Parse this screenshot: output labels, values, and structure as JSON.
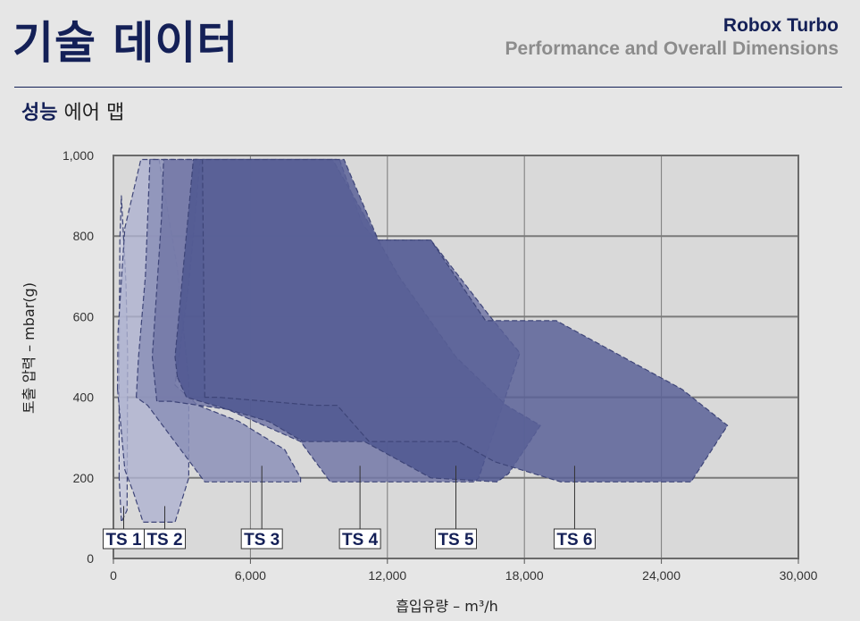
{
  "header": {
    "title": "기술 데이터",
    "brand_line1": "Robox Turbo",
    "brand_line2": "Performance and Overall Dimensions"
  },
  "section": {
    "title_bold": "성능",
    "title_rest": " 에어 맵"
  },
  "colors": {
    "navy": "#142057",
    "grid": "#7a7a7a"
  },
  "chart_data": {
    "type": "area",
    "xlabel": "흡입유량 – m³/h",
    "ylabel": "토출 압력 – mbar(g)",
    "xlim": [
      0,
      30000
    ],
    "ylim": [
      0,
      1000
    ],
    "x_ticks": [
      0,
      6000,
      12000,
      18000,
      24000,
      30000
    ],
    "x_tick_labels": [
      "0",
      "6,000",
      "12,000",
      "18,000",
      "24,000",
      "30,000"
    ],
    "y_ticks": [
      0,
      200,
      400,
      600,
      800,
      1000
    ],
    "y_tick_labels": [
      "0",
      "200",
      "400",
      "600",
      "800",
      "1,000"
    ],
    "grid": true,
    "series": [
      {
        "name": "TS 1",
        "color": "#c3c6dc",
        "opacity": 0.75,
        "label_x": 450,
        "points": [
          [
            250,
            200
          ],
          [
            250,
            480
          ],
          [
            280,
            790
          ],
          [
            350,
            900
          ],
          [
            550,
            680
          ],
          [
            620,
            500
          ],
          [
            600,
            120
          ],
          [
            350,
            90
          ]
        ]
      },
      {
        "name": "TS 2",
        "color": "#aeb2d0",
        "opacity": 0.8,
        "label_x": 2250,
        "points": [
          [
            180,
            420
          ],
          [
            200,
            560
          ],
          [
            500,
            820
          ],
          [
            1200,
            990
          ],
          [
            2000,
            990
          ],
          [
            2800,
            720
          ],
          [
            3300,
            440
          ],
          [
            3300,
            200
          ],
          [
            2700,
            90
          ],
          [
            1300,
            90
          ],
          [
            900,
            160
          ],
          [
            500,
            220
          ]
        ]
      },
      {
        "name": "TS 3",
        "color": "#8c91b9",
        "opacity": 0.85,
        "label_x": 6500,
        "points": [
          [
            1000,
            400
          ],
          [
            1100,
            500
          ],
          [
            1400,
            700
          ],
          [
            1600,
            990
          ],
          [
            3800,
            990
          ],
          [
            3300,
            680
          ],
          [
            2700,
            430
          ],
          [
            3700,
            380
          ],
          [
            5500,
            340
          ],
          [
            7500,
            270
          ],
          [
            8200,
            200
          ],
          [
            8200,
            190
          ],
          [
            4000,
            190
          ],
          [
            1500,
            380
          ]
        ]
      },
      {
        "name": "TS 4",
        "color": "#7378a7",
        "opacity": 0.85,
        "label_x": 10800,
        "points": [
          [
            1900,
            390
          ],
          [
            1700,
            500
          ],
          [
            2100,
            840
          ],
          [
            2200,
            990
          ],
          [
            9900,
            990
          ],
          [
            10900,
            830
          ],
          [
            11500,
            790
          ],
          [
            13900,
            790
          ],
          [
            16500,
            600
          ],
          [
            17800,
            510
          ],
          [
            16000,
            200
          ],
          [
            15800,
            190
          ],
          [
            9500,
            190
          ],
          [
            8200,
            290
          ],
          [
            6600,
            330
          ],
          [
            5000,
            370
          ],
          [
            2500,
            390
          ]
        ]
      },
      {
        "name": "TS 5",
        "color": "#4f5790",
        "opacity": 0.85,
        "label_x": 15000,
        "points": [
          [
            2800,
            450
          ],
          [
            2700,
            500
          ],
          [
            3500,
            990
          ],
          [
            9600,
            990
          ],
          [
            12500,
            700
          ],
          [
            15000,
            500
          ],
          [
            17200,
            380
          ],
          [
            18700,
            330
          ],
          [
            17300,
            210
          ],
          [
            16800,
            190
          ],
          [
            13900,
            200
          ],
          [
            11000,
            290
          ],
          [
            9500,
            290
          ],
          [
            8300,
            290
          ],
          [
            6800,
            340
          ],
          [
            5000,
            370
          ],
          [
            3200,
            400
          ]
        ]
      },
      {
        "name": "TS 6",
        "color": "#5b6298",
        "opacity": 0.85,
        "label_x": 20200,
        "points": [
          [
            4000,
            400
          ],
          [
            3900,
            990
          ],
          [
            10100,
            990
          ],
          [
            11600,
            790
          ],
          [
            13900,
            790
          ],
          [
            16300,
            590
          ],
          [
            19400,
            590
          ],
          [
            24900,
            420
          ],
          [
            26900,
            330
          ],
          [
            25300,
            190
          ],
          [
            19600,
            190
          ],
          [
            16700,
            240
          ],
          [
            15100,
            290
          ],
          [
            11200,
            290
          ],
          [
            9800,
            380
          ],
          [
            8800,
            380
          ],
          [
            4600,
            400
          ]
        ]
      }
    ]
  }
}
